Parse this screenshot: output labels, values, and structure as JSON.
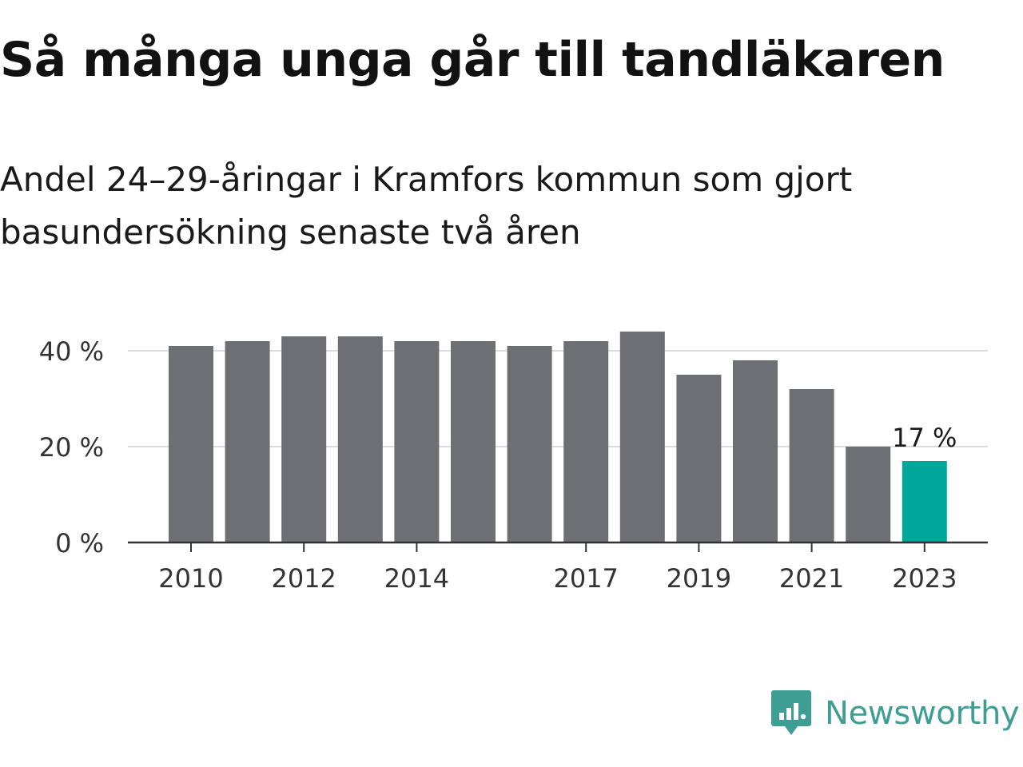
{
  "title": "Så många unga går till tandläkaren",
  "subtitle": "Andel 24–29-åringar i Kramfors kommun som gjort basundersökning senaste två åren",
  "brand": {
    "name": "Newsworthy",
    "color": "#3f9e94",
    "icon": "newsworthy-logo-icon"
  },
  "colors": {
    "bar": "#6e6e75",
    "highlight": "#00a699",
    "grid": "#dcdcdc",
    "axis": "#333333",
    "tick_text": "#333333"
  },
  "chart_data": {
    "type": "bar",
    "x": [
      2010,
      2011,
      2012,
      2013,
      2014,
      2015,
      2016,
      2017,
      2018,
      2019,
      2020,
      2021,
      2022,
      2023
    ],
    "values": [
      41,
      42,
      43,
      43,
      42,
      42,
      41,
      42,
      44,
      35,
      38,
      32,
      20,
      17
    ],
    "unit": "%",
    "highlight_index": 13,
    "highlight_label": "17 %",
    "y_ticks": [
      0,
      20,
      40
    ],
    "y_tick_labels": [
      "0 %",
      "20 %",
      "40 %"
    ],
    "x_tick_labels": [
      "2010",
      "2012",
      "2014",
      "2017",
      "2019",
      "2021",
      "2023"
    ],
    "ylim": [
      0,
      50
    ],
    "grid": true,
    "legend": false
  }
}
